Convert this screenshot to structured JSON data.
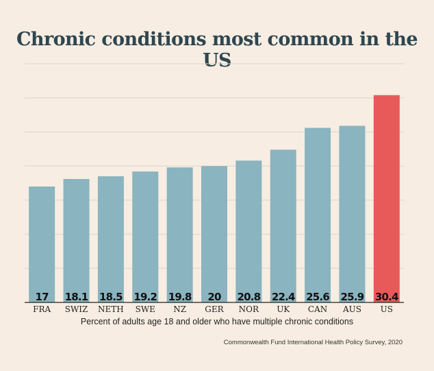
{
  "chart_data": {
    "type": "bar",
    "title": "Chronic conditions most common in the US",
    "xlabel": "Percent of adults age 18 and older who have multiple chronic conditions",
    "ylabel": "",
    "source": "Commonwealth Fund International Health Policy Survey, 2020",
    "categories": [
      "FRA",
      "SWIZ",
      "NETH",
      "SWE",
      "NZ",
      "GER",
      "NOR",
      "UK",
      "CAN",
      "AUS",
      "US"
    ],
    "values": [
      17,
      18.1,
      18.5,
      19.2,
      19.8,
      20,
      20.8,
      22.4,
      25.6,
      25.9,
      30.4
    ],
    "value_labels": [
      "17",
      "18.1",
      "18.5",
      "19.2",
      "19.8",
      "20",
      "20.8",
      "22.4",
      "25.6",
      "25.9",
      "30.4"
    ],
    "ylim": [
      0,
      35
    ],
    "grid": true,
    "colors": {
      "default_bar": "#8ab4bf",
      "highlight_bar": "#e85a5a",
      "highlight_category": "US",
      "grid": "#dcd4ca",
      "title": "#2f4650"
    }
  }
}
